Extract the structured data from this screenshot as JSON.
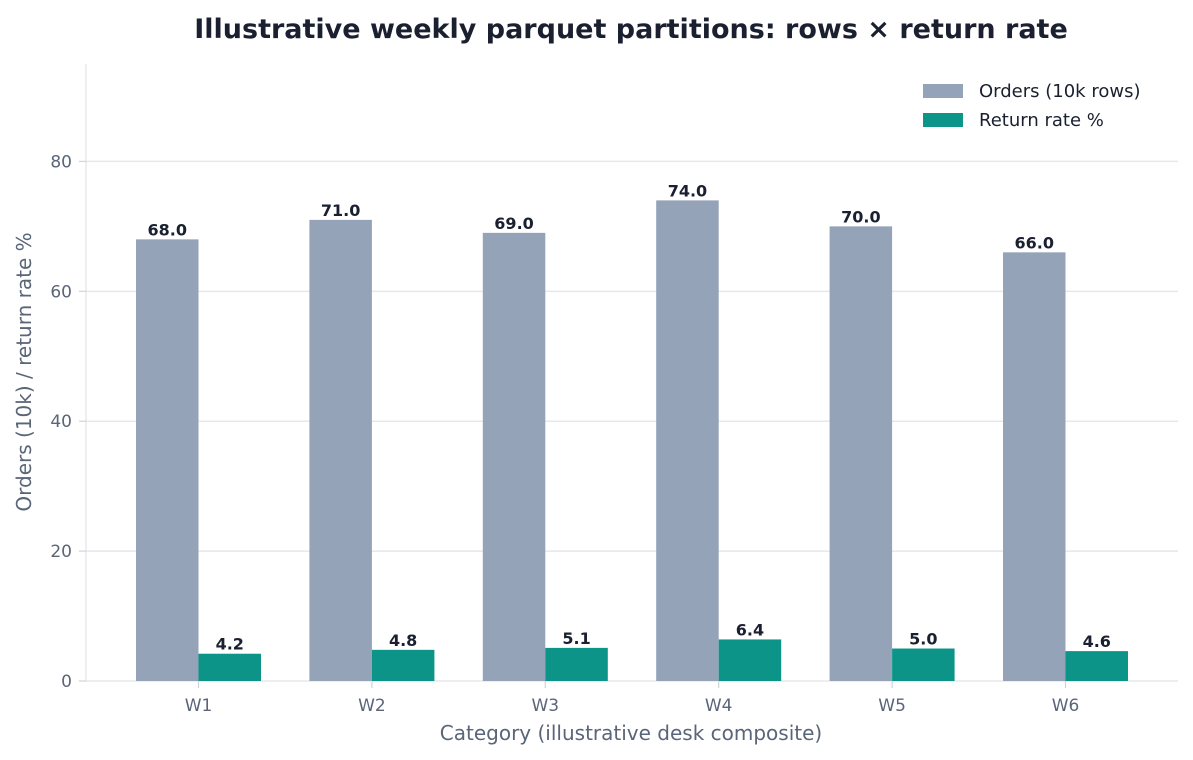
{
  "chart_data": {
    "type": "bar",
    "title": "Illustrative weekly parquet partitions: rows × return rate",
    "xlabel": "Category (illustrative desk composite)",
    "ylabel": "Orders (10k) / return rate %",
    "categories": [
      "W1",
      "W2",
      "W3",
      "W4",
      "W5",
      "W6"
    ],
    "series": [
      {
        "name": "Orders (10k rows)",
        "color": "#94a3b8",
        "values": [
          68.0,
          71.0,
          69.0,
          74.0,
          70.0,
          66.0
        ]
      },
      {
        "name": "Return rate %",
        "color": "#0d9488",
        "values": [
          4.2,
          4.8,
          5.1,
          6.4,
          5.0,
          4.6
        ]
      }
    ],
    "ylim": [
      0,
      95
    ],
    "yticks": [
      0,
      20,
      40,
      60,
      80
    ],
    "grid": "horizontal",
    "legend_position": "top-right"
  }
}
